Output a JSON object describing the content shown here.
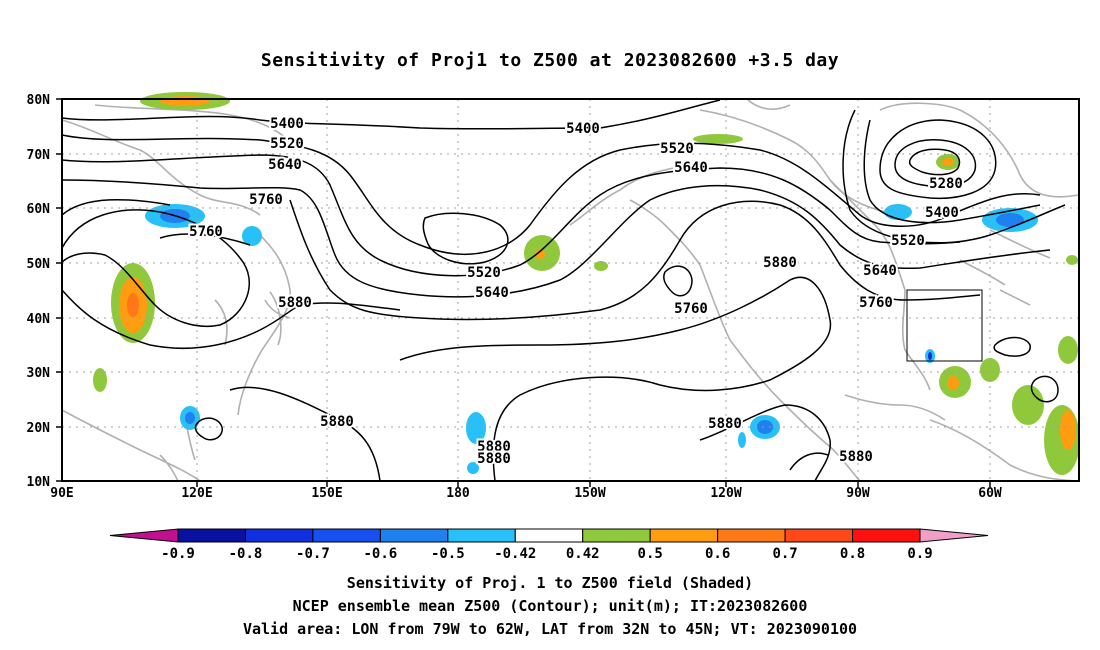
{
  "title": "Sensitivity of Proj1 to Z500 at 2023082600 +3.5 day",
  "lat_labels": [
    "80N",
    "70N",
    "60N",
    "50N",
    "40N",
    "30N",
    "20N",
    "10N"
  ],
  "lon_labels": [
    "90E",
    "120E",
    "150E",
    "180",
    "150W",
    "120W",
    "90W",
    "60W"
  ],
  "contour_labels": [
    "5400",
    "5520",
    "5640",
    "5760",
    "5760",
    "5880",
    "5880",
    "5880",
    "5880",
    "5400",
    "5520",
    "5640",
    "5520",
    "5640",
    "5760",
    "5880",
    "5280",
    "5400",
    "5520",
    "5640",
    "5760",
    "5880",
    "5880"
  ],
  "colorbar": {
    "labels": [
      "-0.9",
      "-0.8",
      "-0.7",
      "-0.6",
      "-0.5",
      "-0.42",
      "0.42",
      "0.5",
      "0.6",
      "0.7",
      "0.8",
      "0.9"
    ],
    "colors": [
      "#c01090",
      "#0a10a0",
      "#1030e0",
      "#1850f0",
      "#2080f0",
      "#28c0f8",
      "#ffffff",
      "#90c83c",
      "#ff9c10",
      "#ff7818",
      "#ff4818",
      "#ff1010",
      "#f0a0c8"
    ]
  },
  "footer": {
    "line1": "Sensitivity of Proj. 1 to Z500 field (Shaded)",
    "line2": "NCEP ensemble mean Z500 (Contour); unit(m); IT:2023082600",
    "line3": "Valid area: LON from 79W to 62W, LAT from 32N to 45N; VT: 2023090100"
  }
}
